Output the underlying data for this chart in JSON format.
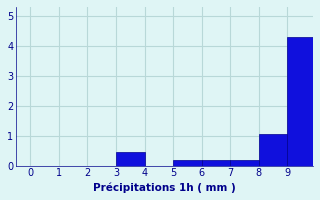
{
  "categories": [
    0,
    1,
    2,
    3,
    4,
    5,
    6,
    7,
    8,
    9
  ],
  "values": [
    0,
    0,
    0,
    0.45,
    0,
    0.2,
    0.2,
    0.2,
    1.05,
    4.3
  ],
  "bar_color": "#1010dd",
  "bar_edge_color": "#000090",
  "xlabel": "Précipitations 1h ( mm )",
  "xlim": [
    -0.5,
    9.9
  ],
  "ylim": [
    0,
    5.3
  ],
  "yticks": [
    0,
    1,
    2,
    3,
    4,
    5
  ],
  "xticks": [
    0,
    1,
    2,
    3,
    4,
    5,
    6,
    7,
    8,
    9
  ],
  "bg_color": "#dff5f5",
  "grid_color": "#b8d8d8",
  "label_color": "#00008b",
  "xlabel_fontsize": 7.5,
  "tick_fontsize": 7,
  "bar_width": 1.0
}
